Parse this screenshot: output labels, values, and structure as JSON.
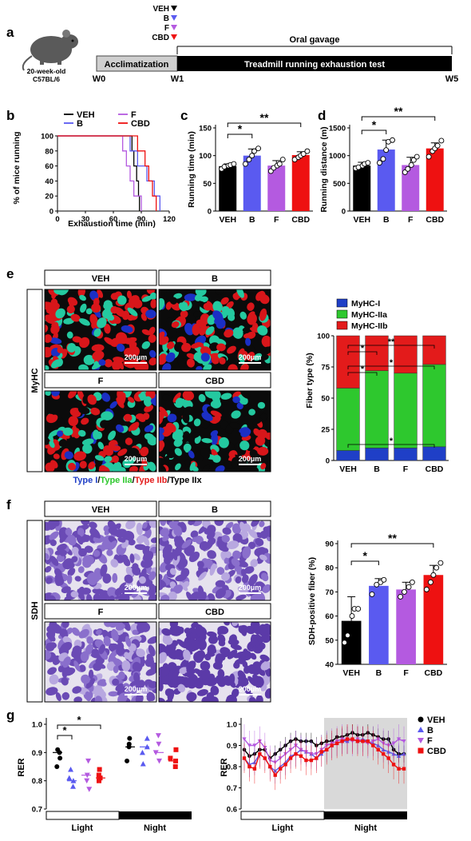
{
  "panels": {
    "a": "a",
    "b": "b",
    "c": "c",
    "d": "d",
    "e": "e",
    "f": "f",
    "g": "g"
  },
  "colors": {
    "VEH": "#000000",
    "B": "#5a5af0",
    "F": "#b45ae0",
    "CBD": "#ee1111",
    "MyHC_I": "#1f3fc7",
    "MyHC_IIa": "#2ec82e",
    "MyHC_IIb": "#e31b1b"
  },
  "panel_a": {
    "mouse_label_1": "20-week-old",
    "mouse_label_2": "C57BL/6",
    "legend": [
      "VEH",
      "B",
      "F",
      "CBD"
    ],
    "oral_gavage": "Oral gavage",
    "acclimatization": "Acclimatization",
    "treadmill": "Treadmill running exhaustion test",
    "weeks": [
      "W0",
      "W1",
      "W5"
    ]
  },
  "panel_b": {
    "legend": [
      "VEH",
      "B",
      "F",
      "CBD"
    ],
    "ylabel": "% of mice running",
    "xlabel": "Exhaustion time (min)",
    "yticks": [
      "0",
      "20",
      "40",
      "60",
      "80",
      "100"
    ],
    "xticks": [
      "0",
      "30",
      "60",
      "90",
      "120"
    ]
  },
  "chart_data": [
    {
      "type": "bar",
      "panel": "c",
      "categories": [
        "VEH",
        "B",
        "F",
        "CBD"
      ],
      "values": [
        81,
        100,
        82,
        101
      ],
      "errors": [
        4,
        12,
        9,
        6
      ],
      "points": [
        [
          76,
          80,
          82,
          83,
          85
        ],
        [
          85,
          93,
          100,
          108,
          113
        ],
        [
          72,
          78,
          82,
          85,
          93
        ],
        [
          93,
          97,
          100,
          103,
          108
        ]
      ],
      "ylabel": "Running time (min)",
      "yticks": [
        "0",
        "50",
        "100",
        "150"
      ],
      "ylim": [
        0,
        150
      ],
      "significance": [
        {
          "from": "VEH",
          "to": "B",
          "label": "*"
        },
        {
          "from": "VEH",
          "to": "CBD",
          "label": "**"
        }
      ]
    },
    {
      "type": "bar",
      "panel": "d",
      "categories": [
        "VEH",
        "B",
        "F",
        "CBD"
      ],
      "values": [
        820,
        1110,
        830,
        1130
      ],
      "errors": [
        60,
        170,
        140,
        100
      ],
      "points": [
        [
          770,
          790,
          820,
          850,
          870
        ],
        [
          870,
          940,
          1100,
          1250,
          1280
        ],
        [
          700,
          760,
          830,
          920,
          980
        ],
        [
          980,
          1080,
          1130,
          1180,
          1270
        ]
      ],
      "ylabel": "Running distance (m)",
      "yticks": [
        "0",
        "500",
        "1000",
        "1500"
      ],
      "ylim": [
        0,
        1500
      ],
      "significance": [
        {
          "from": "VEH",
          "to": "B",
          "label": "*"
        },
        {
          "from": "VEH",
          "to": "CBD",
          "label": "**"
        }
      ]
    },
    {
      "type": "bar",
      "panel": "e",
      "stacked": true,
      "categories": [
        "VEH",
        "B",
        "F",
        "CBD"
      ],
      "series": [
        {
          "name": "MyHC-I",
          "values": [
            8,
            10,
            10,
            11
          ]
        },
        {
          "name": "MyHC-IIa",
          "values": [
            50,
            62,
            60,
            66
          ]
        },
        {
          "name": "MyHC-IIb",
          "values": [
            42,
            28,
            30,
            23
          ]
        }
      ],
      "ylabel": "Fiber type (%)",
      "yticks": [
        "0",
        "25",
        "50",
        "75",
        "100"
      ],
      "ylim": [
        0,
        100
      ],
      "significance": [
        "*",
        "**",
        "*",
        "*",
        "*"
      ]
    },
    {
      "type": "bar",
      "panel": "f",
      "categories": [
        "VEH",
        "B",
        "F",
        "CBD"
      ],
      "values": [
        58,
        72.5,
        71,
        77
      ],
      "errors": [
        10,
        3,
        3,
        4
      ],
      "points": [
        [
          49,
          52,
          60,
          63,
          63
        ],
        [
          69,
          73,
          74,
          75
        ],
        [
          68,
          70,
          72,
          74
        ],
        [
          71,
          74,
          77,
          80,
          82
        ]
      ],
      "ylabel": "SDH-positive fiber (%)",
      "yticks": [
        "40",
        "50",
        "60",
        "70",
        "80",
        "90"
      ],
      "ylim": [
        40,
        90
      ],
      "significance": [
        {
          "from": "VEH",
          "to": "B",
          "label": "*"
        },
        {
          "from": "VEH",
          "to": "CBD",
          "label": "**"
        }
      ]
    },
    {
      "type": "scatter",
      "panel": "g-left",
      "groups": [
        "VEH",
        "B",
        "F",
        "CBD"
      ],
      "light": [
        [
          0.85,
          0.88,
          0.91,
          0.9
        ],
        [
          0.78,
          0.8,
          0.81,
          0.84
        ],
        [
          0.77,
          0.8,
          0.82,
          0.87
        ],
        [
          0.8,
          0.81,
          0.82,
          0.84
        ]
      ],
      "night": [
        [
          0.87,
          0.92,
          0.93,
          0.95
        ],
        [
          0.86,
          0.9,
          0.92,
          0.95
        ],
        [
          0.87,
          0.9,
          0.93,
          0.96
        ],
        [
          0.85,
          0.87,
          0.88,
          0.91
        ]
      ],
      "means_light": [
        0.9,
        0.8,
        0.82,
        0.81
      ],
      "means_night": [
        0.92,
        0.92,
        0.9,
        0.87
      ],
      "ylabel": "RER",
      "yticks": [
        "0.7",
        "0.8",
        "0.9",
        "1.0"
      ],
      "ylim": [
        0.7,
        1.0
      ],
      "significance": [
        {
          "from": "VEH",
          "to": "B",
          "label": "*"
        },
        {
          "from": "VEH",
          "to": "CBD",
          "label": "*"
        }
      ]
    },
    {
      "type": "line",
      "panel": "g-right",
      "series": [
        {
          "name": "VEH",
          "values": [
            0.88,
            0.85,
            0.86,
            0.88,
            0.88,
            0.84,
            0.86,
            0.88,
            0.9,
            0.92,
            0.93,
            0.92,
            0.92,
            0.92,
            0.9,
            0.91,
            0.92,
            0.92,
            0.94,
            0.94,
            0.95,
            0.96,
            0.95,
            0.95,
            0.96,
            0.95,
            0.94,
            0.93,
            0.93,
            0.88,
            0.86,
            0.86
          ],
          "error": 0.04
        },
        {
          "name": "B",
          "values": [
            0.84,
            0.81,
            0.82,
            0.86,
            0.84,
            0.8,
            0.78,
            0.8,
            0.82,
            0.85,
            0.86,
            0.88,
            0.87,
            0.86,
            0.84,
            0.86,
            0.88,
            0.9,
            0.91,
            0.92,
            0.92,
            0.93,
            0.92,
            0.93,
            0.92,
            0.91,
            0.9,
            0.88,
            0.87,
            0.86,
            0.85,
            0.86
          ],
          "error": 0.06
        },
        {
          "name": "F",
          "values": [
            0.93,
            0.9,
            0.9,
            0.92,
            0.89,
            0.83,
            0.82,
            0.84,
            0.86,
            0.88,
            0.9,
            0.88,
            0.87,
            0.86,
            0.86,
            0.88,
            0.9,
            0.91,
            0.92,
            0.93,
            0.93,
            0.92,
            0.93,
            0.92,
            0.91,
            0.92,
            0.93,
            0.91,
            0.9,
            0.91,
            0.93,
            0.92
          ],
          "error": 0.07
        },
        {
          "name": "CBD",
          "values": [
            0.84,
            0.8,
            0.79,
            0.86,
            0.84,
            0.8,
            0.76,
            0.79,
            0.81,
            0.84,
            0.86,
            0.85,
            0.83,
            0.83,
            0.84,
            0.87,
            0.88,
            0.9,
            0.91,
            0.92,
            0.93,
            0.93,
            0.92,
            0.92,
            0.92,
            0.9,
            0.88,
            0.86,
            0.84,
            0.81,
            0.79,
            0.79
          ],
          "error": 0.07
        }
      ],
      "ylabel": "RER",
      "yticks": [
        "0.6",
        "0.7",
        "0.8",
        "0.9",
        "1.0"
      ],
      "ylim": [
        0.6,
        1.0
      ],
      "night_shaded": true
    }
  ],
  "panel_e": {
    "side_label": "MyHC",
    "images": [
      {
        "title": "VEH",
        "scale": "200μm"
      },
      {
        "title": "B",
        "scale": "200μm"
      },
      {
        "title": "F",
        "scale": "200μm"
      },
      {
        "title": "CBD",
        "scale": "200μm"
      }
    ],
    "legend": [
      "MyHC-I",
      "MyHC-IIa",
      "MyHC-IIb"
    ],
    "caption": [
      {
        "text": "Type I",
        "color": "#1f3fc7"
      },
      {
        "text": "/",
        "color": "#000"
      },
      {
        "text": "Type IIa",
        "color": "#2ec82e"
      },
      {
        "text": "/",
        "color": "#000"
      },
      {
        "text": "Type IIb",
        "color": "#e31b1b"
      },
      {
        "text": "/",
        "color": "#000"
      },
      {
        "text": "Type IIx",
        "color": "#000"
      }
    ]
  },
  "panel_f": {
    "side_label": "SDH",
    "images": [
      {
        "title": "VEH",
        "scale": "200μm"
      },
      {
        "title": "B",
        "scale": "200μm"
      },
      {
        "title": "F",
        "scale": "200μm"
      },
      {
        "title": "CBD",
        "scale": "200μm"
      }
    ]
  },
  "panel_g": {
    "light": "Light",
    "night": "Night",
    "legend": [
      "VEH",
      "B",
      "F",
      "CBD"
    ]
  }
}
